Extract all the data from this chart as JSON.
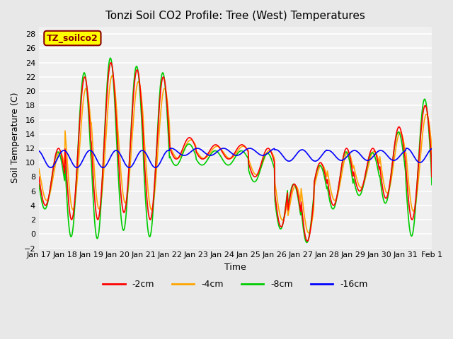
{
  "title": "Tonzi Soil CO2 Profile: Tree (West) Temperatures",
  "xlabel": "Time",
  "ylabel": "Soil Temperature (C)",
  "annotation_text": "TZ_soilco2",
  "ylim": [
    -2,
    29
  ],
  "yticks": [
    -2,
    0,
    2,
    4,
    6,
    8,
    10,
    12,
    14,
    16,
    18,
    20,
    22,
    24,
    26,
    28
  ],
  "xtick_labels": [
    "Jan 17",
    "Jan 18",
    "Jan 19",
    "Jan 20",
    "Jan 21",
    "Jan 22",
    "Jan 23",
    "Jan 24",
    "Jan 25",
    "Jan 26",
    "Jan 27",
    "Jan 28",
    "Jan 29",
    "Jan 30",
    "Jan 31",
    "Feb 1"
  ],
  "line_colors": {
    "-2cm": "#ff0000",
    "-4cm": "#ffa500",
    "-8cm": "#00cc00",
    "-16cm": "#0000ff"
  },
  "line_width": 1.2,
  "bg_color": "#e8e8e8",
  "plot_bg": "#f0f0f0",
  "grid_color": "#ffffff",
  "annotation_bg": "#ffff00",
  "annotation_fg": "#8b0000"
}
